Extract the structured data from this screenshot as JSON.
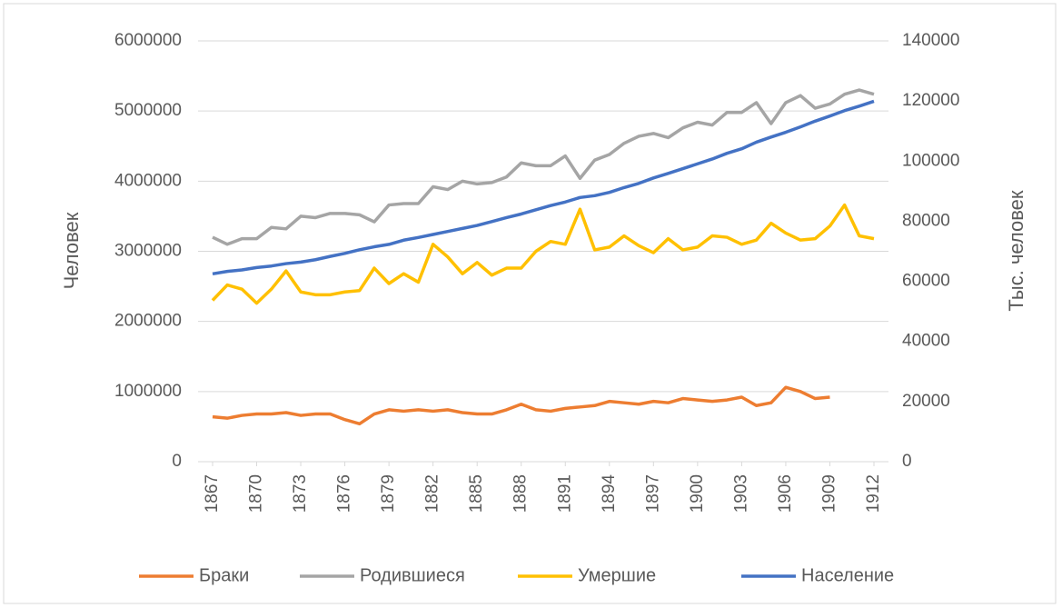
{
  "chart_data": {
    "type": "line",
    "x": [
      1867,
      1868,
      1869,
      1870,
      1871,
      1872,
      1873,
      1874,
      1875,
      1876,
      1877,
      1878,
      1879,
      1880,
      1881,
      1882,
      1883,
      1884,
      1885,
      1886,
      1887,
      1888,
      1889,
      1890,
      1891,
      1892,
      1893,
      1894,
      1895,
      1896,
      1897,
      1898,
      1899,
      1900,
      1901,
      1902,
      1903,
      1904,
      1905,
      1906,
      1907,
      1908,
      1909,
      1910,
      1911,
      1912
    ],
    "xlim": [
      1867,
      1912
    ],
    "xticks": [
      1867,
      1870,
      1873,
      1876,
      1879,
      1882,
      1885,
      1888,
      1891,
      1894,
      1897,
      1900,
      1903,
      1906,
      1909,
      1912
    ],
    "ylabel": "Человек",
    "y2label": "Тыс. человек",
    "ylim": [
      0,
      6000000
    ],
    "yticks": [
      0,
      1000000,
      2000000,
      3000000,
      4000000,
      5000000,
      6000000
    ],
    "y2lim": [
      0,
      140000
    ],
    "y2ticks": [
      0,
      20000,
      40000,
      60000,
      80000,
      100000,
      120000,
      140000
    ],
    "grid": true,
    "legend": "bottom",
    "series": [
      {
        "name": "Браки",
        "color": "#ed7d31",
        "values": [
          640000,
          620000,
          660000,
          680000,
          680000,
          700000,
          660000,
          680000,
          680000,
          600000,
          540000,
          680000,
          740000,
          720000,
          740000,
          720000,
          740000,
          700000,
          680000,
          680000,
          740000,
          820000,
          740000,
          720000,
          760000,
          780000,
          800000,
          860000,
          840000,
          820000,
          860000,
          840000,
          900000,
          880000,
          860000,
          880000,
          920000,
          800000,
          840000,
          1060000,
          1000000,
          900000,
          920000,
          null,
          null,
          null
        ]
      },
      {
        "name": "Родившиеся",
        "color": "#a5a5a5",
        "values": [
          3200000,
          3100000,
          3180000,
          3180000,
          3340000,
          3320000,
          3500000,
          3480000,
          3540000,
          3540000,
          3520000,
          3420000,
          3660000,
          3680000,
          3680000,
          3920000,
          3880000,
          4000000,
          3960000,
          3980000,
          4060000,
          4260000,
          4220000,
          4220000,
          4360000,
          4040000,
          4300000,
          4380000,
          4540000,
          4640000,
          4680000,
          4620000,
          4760000,
          4840000,
          4800000,
          4980000,
          4980000,
          5120000,
          4820000,
          5120000,
          5220000,
          5040000,
          5100000,
          5240000,
          5300000,
          5240000
        ]
      },
      {
        "name": "Умершие",
        "color": "#ffc000",
        "values": [
          2300000,
          2520000,
          2460000,
          2260000,
          2460000,
          2720000,
          2420000,
          2380000,
          2380000,
          2420000,
          2440000,
          2760000,
          2540000,
          2680000,
          2560000,
          3100000,
          2920000,
          2680000,
          2840000,
          2660000,
          2760000,
          2760000,
          3000000,
          3140000,
          3100000,
          3600000,
          3020000,
          3060000,
          3220000,
          3080000,
          2980000,
          3180000,
          3020000,
          3060000,
          3220000,
          3200000,
          3100000,
          3160000,
          3400000,
          3260000,
          3160000,
          3180000,
          3360000,
          3660000,
          3220000,
          3180000
        ]
      },
      {
        "name": "Население",
        "color": "#4472c4",
        "axis": "y2",
        "values": [
          62500,
          63300,
          63800,
          64600,
          65100,
          65900,
          66400,
          67200,
          68300,
          69300,
          70500,
          71500,
          72300,
          73700,
          74600,
          75600,
          76600,
          77600,
          78600,
          79900,
          81200,
          82400,
          83800,
          85200,
          86400,
          87900,
          88500,
          89600,
          91200,
          92600,
          94400,
          95900,
          97500,
          99100,
          100700,
          102600,
          104100,
          106300,
          108000,
          109600,
          111400,
          113300,
          115000,
          116800,
          118300,
          119900
        ]
      }
    ]
  }
}
